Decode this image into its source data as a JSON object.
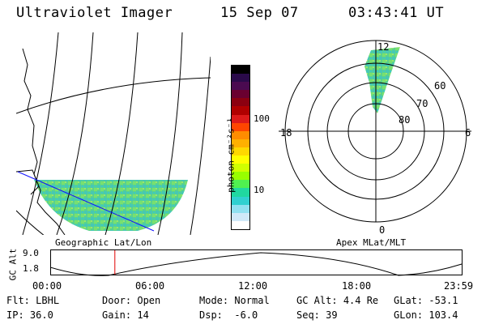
{
  "header": {
    "instrument": "Ultraviolet Imager",
    "date": "15 Sep 07",
    "time": "03:43:41 UT"
  },
  "geo_panel": {
    "label": "Geographic Lat/Lon"
  },
  "colorbar": {
    "unit_label": "photon cm⁻²s⁻¹",
    "ticks": [
      "100",
      "10"
    ],
    "colors": [
      "#000000",
      "#2a0a4a",
      "#4a0a50",
      "#6a0030",
      "#8b0010",
      "#b00000",
      "#dd1a1a",
      "#ff4500",
      "#ff8c00",
      "#ffb000",
      "#ffd800",
      "#ffff00",
      "#d0ff00",
      "#98ff00",
      "#50f050",
      "#20d8a0",
      "#30d0d0",
      "#90e0f0",
      "#d0e8f8",
      "#ffffff"
    ]
  },
  "polar_panel": {
    "label": "Apex MLat/MLT",
    "mlt_labels": {
      "top": "12",
      "left": "18",
      "right": "6",
      "bottom": "0"
    },
    "lat_labels": [
      "60",
      "70",
      "80"
    ]
  },
  "altitude_plot": {
    "ylabel": "GC Alt",
    "yticks": [
      "9.0",
      "1.8"
    ],
    "xticks": [
      "00:00",
      "06:00",
      "12:00",
      "18:00",
      "23:59"
    ],
    "current_time_hours": 3.73
  },
  "info": {
    "row1": [
      {
        "label": "Flt:",
        "value": "LBHL"
      },
      {
        "label": "Door:",
        "value": "Open"
      },
      {
        "label": "Mode:",
        "value": "Normal"
      },
      {
        "label": "GC Alt:",
        "value": "4.4 Re"
      },
      {
        "label": "GLat:",
        "value": "-53.1"
      }
    ],
    "row2": [
      {
        "label": "IP:",
        "value": "36.0"
      },
      {
        "label": "Gain:",
        "value": "14"
      },
      {
        "label": "Dsp:",
        "value": "-6.0"
      },
      {
        "label": "Seq:",
        "value": "39"
      },
      {
        "label": "GLon:",
        "value": "103.4"
      }
    ]
  }
}
